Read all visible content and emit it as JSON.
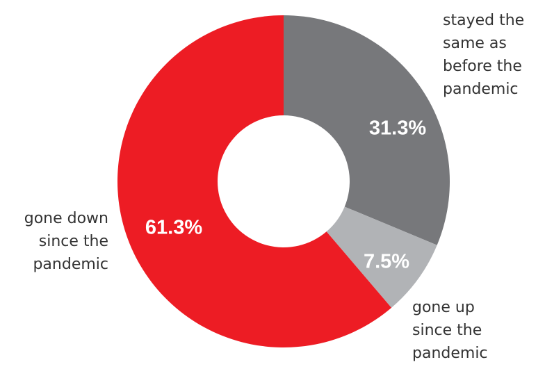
{
  "chart_data": {
    "type": "pie",
    "donut": true,
    "title": "",
    "slices": [
      {
        "label": [
          "stayed the",
          "same as",
          "before the",
          "pandemic"
        ],
        "value": 31.3,
        "display": "31.3%",
        "color": "#77787b"
      },
      {
        "label": [
          "gone up",
          "since the",
          "pandemic"
        ],
        "value": 7.5,
        "display": "7.5%",
        "color": "#b1b3b6"
      },
      {
        "label": [
          "gone down",
          "since the",
          "pandemic"
        ],
        "value": 61.3,
        "display": "61.3%",
        "color": "#ed1c24"
      }
    ]
  }
}
